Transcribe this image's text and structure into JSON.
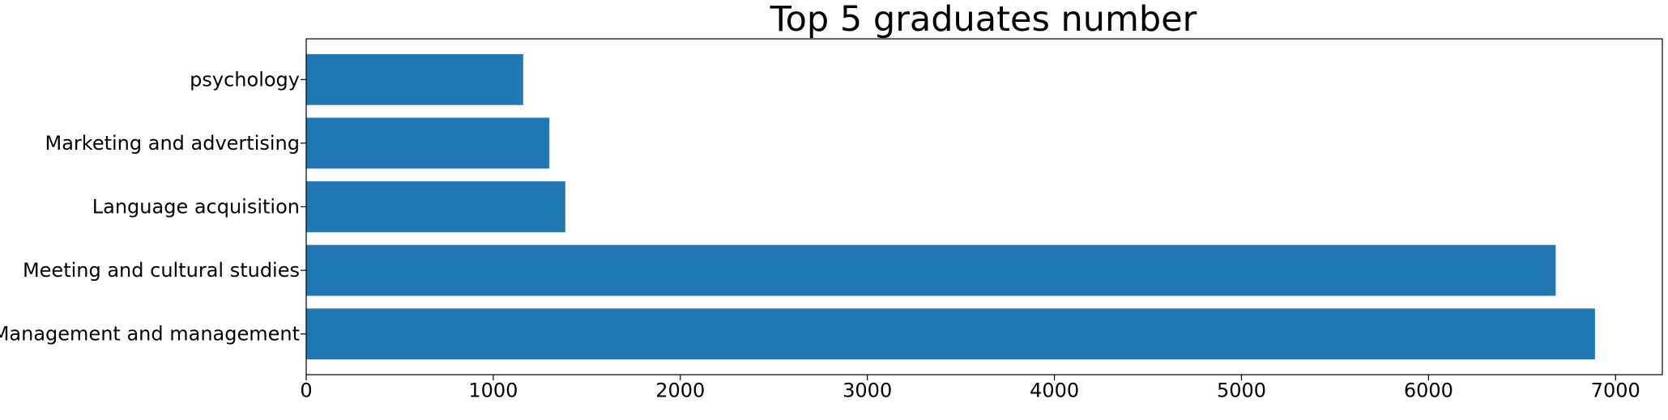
{
  "chart_data": {
    "type": "bar",
    "orientation": "horizontal",
    "title": "Top 5 graduates number",
    "xlabel": "",
    "ylabel": "",
    "categories": [
      "Management and management",
      "Meeting and cultural studies",
      "Language acquisition",
      "Marketing and advertising",
      "psychology"
    ],
    "values": [
      6890,
      6680,
      1385,
      1300,
      1160
    ],
    "xlim": [
      0,
      7250
    ],
    "xticks": [
      0,
      1000,
      2000,
      3000,
      4000,
      5000,
      6000,
      7000
    ],
    "xtick_labels": [
      "0",
      "1000",
      "2000",
      "3000",
      "4000",
      "5000",
      "6000",
      "7000"
    ],
    "grid": false,
    "legend": "none",
    "bar_color": "#1f77b4"
  }
}
